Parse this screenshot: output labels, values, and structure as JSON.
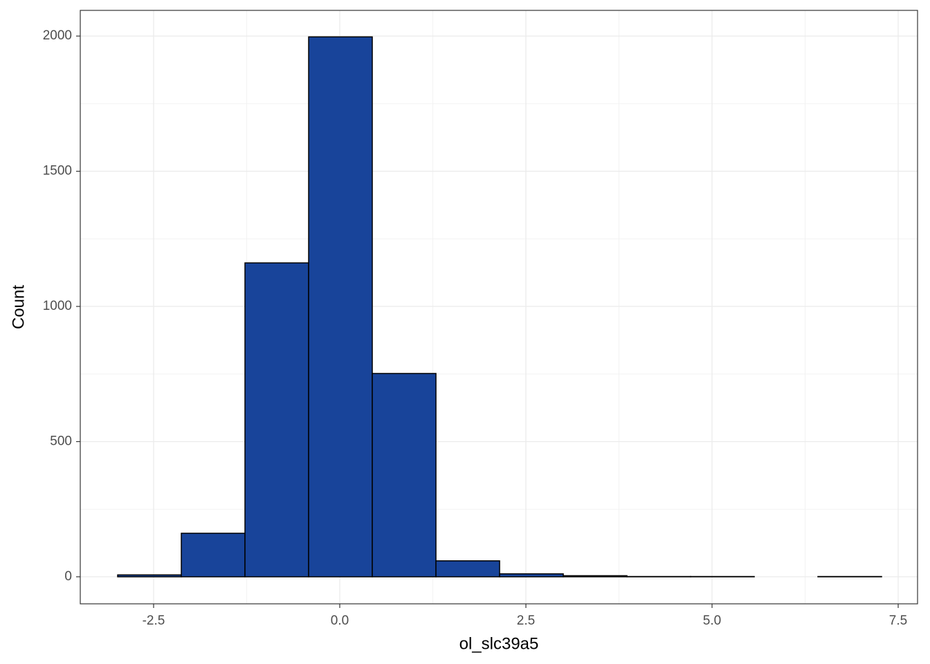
{
  "chart_data": {
    "type": "histogram",
    "x_label": "ol_slc39a5",
    "y_label": "Count",
    "bins": [
      -2.983,
      -2.128,
      -1.273,
      -0.418,
      0.437,
      1.292,
      2.147,
      3.002,
      3.857,
      4.712,
      5.567,
      6.422,
      7.277
    ],
    "values": [
      7,
      161,
      1161,
      1997,
      752,
      59,
      11,
      4,
      1,
      1,
      0,
      1
    ],
    "color": "#18449a",
    "edgecolor": "#000000",
    "xlim": [
      -3.485,
      7.76
    ],
    "xticks": [
      -2.5,
      {
        "value": 0,
        "label": "0.0"
      },
      2.5,
      {
        "value": 5,
        "label": "5.0"
      },
      7.5
    ],
    "ylim": [
      -100,
      2095
    ],
    "yticks": [
      0,
      500,
      1000,
      1500,
      2000
    ],
    "grid": true
  }
}
